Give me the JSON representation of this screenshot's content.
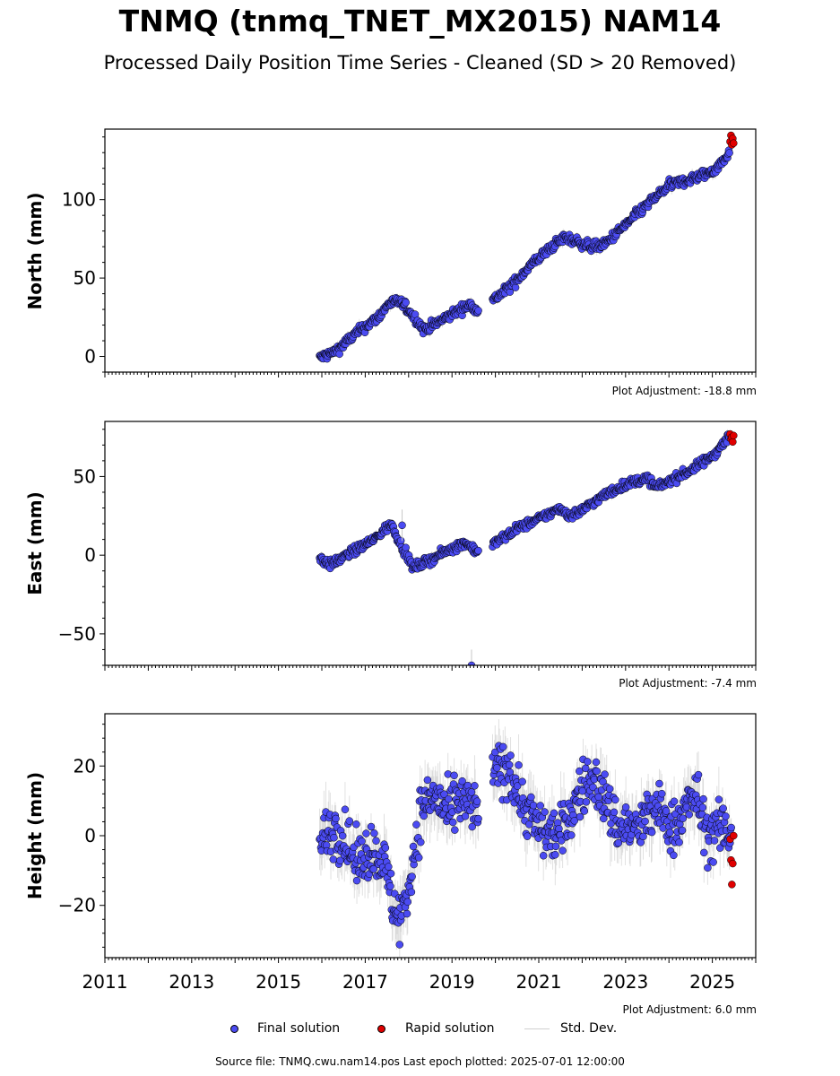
{
  "title": "TNMQ (tnmq_TNET_MX2015) NAM14",
  "subtitle": "Processed Daily Position Time Series - Cleaned (SD > 20 Removed)",
  "legend": {
    "final": "Final solution",
    "rapid": "Rapid solution",
    "stddev": "Std. Dev."
  },
  "footer": "Source file: TNMQ.cwu.nam14.pos  Last epoch plotted: 2025-07-01 12:00:00",
  "colors": {
    "final": "#4b4bf2",
    "rapid": "#e00000",
    "stddev": "#c8c8c8",
    "edge": "#000000"
  },
  "chart_data": [
    {
      "type": "scatter",
      "ylabel": "North (mm)",
      "adjustment": "Plot Adjustment: -18.8 mm",
      "xlim": [
        2011,
        2026
      ],
      "ylim": [
        -10,
        145
      ],
      "yticks": [
        0,
        50,
        100
      ],
      "xticks": [
        2011,
        2013,
        2015,
        2017,
        2019,
        2021,
        2023,
        2025
      ],
      "show_xtick_labels": false,
      "final_trend": {
        "x": [
          2015.95,
          2016.3,
          2016.8,
          2017.3,
          2017.55,
          2017.8,
          2018.05,
          2018.35,
          2018.7,
          2019.0,
          2019.4,
          2019.6,
          2019.95,
          2020.4,
          2020.8,
          2021.3,
          2021.6,
          2021.9,
          2022.2,
          2022.5,
          2023.0,
          2023.5,
          2024.0,
          2024.5,
          2025.0,
          2025.3,
          2025.4
        ],
        "y": [
          -1,
          3,
          15,
          25,
          34,
          35,
          28,
          17,
          22,
          27,
          33,
          30,
          36,
          46,
          58,
          70,
          76,
          73,
          70,
          71,
          84,
          97,
          109,
          113,
          118,
          126,
          132
        ]
      },
      "noise": 2.2,
      "stddev_scale": 3.5,
      "rapid": {
        "x": [
          2025.41,
          2025.43,
          2025.45,
          2025.47,
          2025.49
        ],
        "y": [
          137,
          141,
          135,
          139,
          136
        ]
      }
    },
    {
      "type": "scatter",
      "ylabel": "East (mm)",
      "adjustment": "Plot Adjustment: -7.4 mm",
      "xlim": [
        2011,
        2026
      ],
      "ylim": [
        -70,
        85
      ],
      "yticks": [
        -50,
        0,
        50
      ],
      "xticks": [
        2011,
        2013,
        2015,
        2017,
        2019,
        2021,
        2023,
        2025
      ],
      "show_xtick_labels": false,
      "final_trend": {
        "x": [
          2015.95,
          2016.2,
          2016.7,
          2017.2,
          2017.6,
          2017.8,
          2018.1,
          2018.5,
          2018.9,
          2019.3,
          2019.6,
          2019.95,
          2020.5,
          2021.0,
          2021.5,
          2021.7,
          2021.9,
          2022.5,
          2023.0,
          2023.5,
          2023.7,
          2024.0,
          2024.5,
          2025.0,
          2025.4
        ],
        "y": [
          -2,
          -6,
          2,
          10,
          20,
          8,
          -8,
          -3,
          3,
          8,
          2,
          7,
          17,
          23,
          30,
          25,
          27,
          38,
          45,
          49,
          43,
          47,
          54,
          63,
          76
        ]
      },
      "noise": 2.0,
      "stddev_scale": 3.0,
      "outliers": {
        "x": [
          2017.85,
          2019.45
        ],
        "y": [
          19,
          -70
        ]
      },
      "rapid": {
        "x": [
          2025.41,
          2025.43,
          2025.45,
          2025.47,
          2025.49
        ],
        "y": [
          77,
          74,
          75,
          72,
          76
        ]
      }
    },
    {
      "type": "scatter",
      "ylabel": "Height (mm)",
      "adjustment": "Plot Adjustment: 6.0 mm",
      "xlim": [
        2011,
        2026
      ],
      "ylim": [
        -35,
        35
      ],
      "yticks": [
        -20,
        0,
        20
      ],
      "xticks": [
        2011,
        2013,
        2015,
        2017,
        2019,
        2021,
        2023,
        2025
      ],
      "show_xtick_labels": true,
      "final_trend": {
        "x": [
          2015.95,
          2016.2,
          2016.5,
          2016.8,
          2017.1,
          2017.4,
          2017.6,
          2017.8,
          2018.0,
          2018.3,
          2018.6,
          2018.9,
          2019.2,
          2019.6,
          2019.95,
          2020.3,
          2020.6,
          2021.0,
          2021.5,
          2022.0,
          2022.3,
          2022.8,
          2023.3,
          2023.7,
          2024.1,
          2024.6,
          2024.9,
          2025.2,
          2025.45
        ],
        "y": [
          -3,
          2,
          0,
          -8,
          -4,
          -6,
          -18,
          -24,
          -15,
          8,
          12,
          6,
          10,
          7,
          18,
          20,
          10,
          2,
          0,
          14,
          16,
          3,
          2,
          8,
          2,
          12,
          0,
          2,
          1
        ]
      },
      "noise": 5.5,
      "stddev_scale": 8,
      "rapid": {
        "x": [
          2025.41,
          2025.43,
          2025.45,
          2025.47,
          2025.49
        ],
        "y": [
          -1,
          -7,
          -14,
          -8,
          0
        ]
      }
    }
  ]
}
